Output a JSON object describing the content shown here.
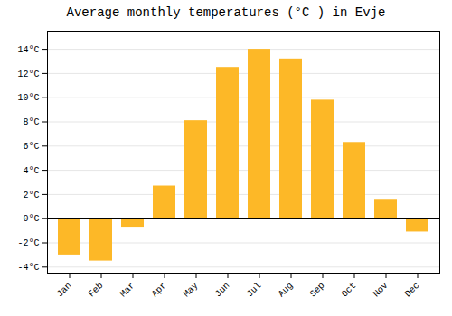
{
  "chart_data": {
    "type": "bar",
    "title": "Average monthly temperatures (°C ) in Evje",
    "categories": [
      "Jan",
      "Feb",
      "Mar",
      "Apr",
      "May",
      "Jun",
      "Jul",
      "Aug",
      "Sep",
      "Oct",
      "Nov",
      "Dec"
    ],
    "values": [
      -3.0,
      -3.5,
      -0.7,
      2.7,
      8.1,
      12.5,
      14.0,
      13.2,
      9.8,
      6.3,
      1.6,
      -1.1
    ],
    "color": "#FDB827",
    "ylim": [
      -4.5,
      15.5
    ],
    "yticks": [
      {
        "value": -4,
        "label": "-4°C"
      },
      {
        "value": -2,
        "label": "-2°C"
      },
      {
        "value": 0,
        "label": "0°C"
      },
      {
        "value": 2,
        "label": "2°C"
      },
      {
        "value": 4,
        "label": "4°C"
      },
      {
        "value": 6,
        "label": "6°C"
      },
      {
        "value": 8,
        "label": "8°C"
      },
      {
        "value": 10,
        "label": "10°C"
      },
      {
        "value": 12,
        "label": "12°C"
      },
      {
        "value": 14,
        "label": "14°C"
      }
    ],
    "grid": true
  }
}
